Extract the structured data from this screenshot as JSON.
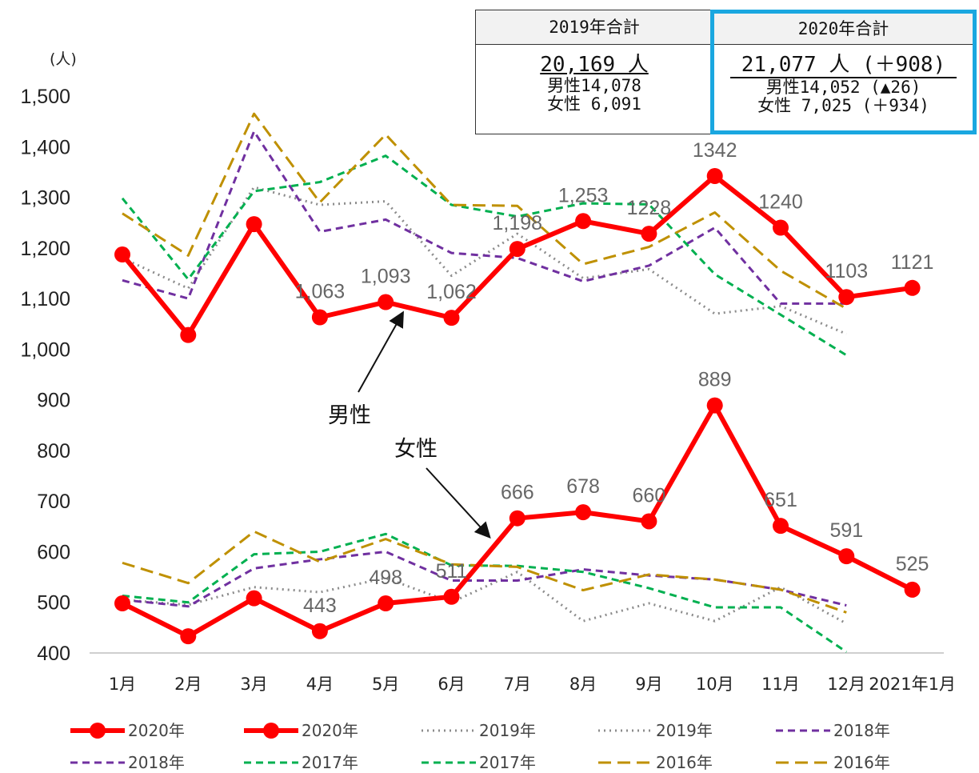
{
  "summary": {
    "y2019": {
      "header": "2019年合計",
      "total": "20,169 人",
      "male": "男性14,078",
      "female": "女性 6,091"
    },
    "y2020": {
      "header": "2020年合計",
      "total": "21,077 人 (＋908)",
      "male": "男性14,052 (▲26)",
      "female": "女性 7,025 (＋934)"
    }
  },
  "annotations": {
    "unit": "(人)",
    "male": "男性",
    "female": "女性"
  },
  "colors": {
    "y2020": "#ff0000",
    "y2019": "#8c8c8c",
    "y2018": "#7030a0",
    "y2017": "#00b050",
    "y2016": "#bf9000"
  },
  "chart_data": {
    "type": "line",
    "categories": [
      "1月",
      "2月",
      "3月",
      "4月",
      "5月",
      "6月",
      "7月",
      "8月",
      "9月",
      "10月",
      "11月",
      "12月",
      "2021年1月"
    ],
    "ylim": [
      400,
      1500
    ],
    "yticks": [
      "400",
      "500",
      "600",
      "700",
      "800",
      "900",
      "1,000",
      "1,100",
      "1,200",
      "1,300",
      "1,400",
      "1,500"
    ],
    "series": [
      {
        "name": "2020年",
        "group": "男性",
        "style": "y2020",
        "values": [
          1187,
          1028,
          1247,
          1063,
          1093,
          1062,
          1198,
          1253,
          1228,
          1342,
          1240,
          1103,
          1121
        ],
        "labels": [
          "",
          "",
          "",
          "1,063",
          "1,093",
          "1,062",
          "1,198",
          "1,253",
          "1228",
          "1342",
          "1240",
          "1103",
          "1121"
        ]
      },
      {
        "name": "2020年",
        "group": "女性",
        "style": "y2020",
        "values": [
          498,
          433,
          508,
          443,
          498,
          511,
          666,
          678,
          660,
          889,
          651,
          591,
          525
        ],
        "labels": [
          "",
          "",
          "",
          "443",
          "498",
          "511",
          "666",
          "678",
          "660",
          "889",
          "651",
          "591",
          "525"
        ]
      },
      {
        "name": "2019年",
        "group": "男性",
        "style": "y2019",
        "values": [
          1180,
          1120,
          1320,
          1285,
          1292,
          1145,
          1228,
          1140,
          1158,
          1070,
          1085,
          1030,
          null
        ]
      },
      {
        "name": "2019年",
        "group": "女性",
        "style": "y2019",
        "values": [
          505,
          495,
          530,
          520,
          548,
          500,
          560,
          463,
          498,
          463,
          530,
          458,
          null
        ]
      },
      {
        "name": "2018年",
        "group": "男性",
        "style": "y2018",
        "values": [
          1136,
          1100,
          1430,
          1232,
          1256,
          1190,
          1180,
          1134,
          1165,
          1240,
          1090,
          1090,
          null
        ]
      },
      {
        "name": "2018年",
        "group": "女性",
        "style": "y2018",
        "values": [
          505,
          492,
          567,
          585,
          600,
          543,
          543,
          565,
          553,
          545,
          525,
          494,
          null
        ]
      },
      {
        "name": "2017年",
        "group": "男性",
        "style": "y2017",
        "values": [
          1298,
          1138,
          1312,
          1330,
          1382,
          1285,
          1262,
          1288,
          1286,
          1148,
          1068,
          988,
          null
        ]
      },
      {
        "name": "2017年",
        "group": "女性",
        "style": "y2017",
        "values": [
          513,
          500,
          595,
          600,
          635,
          573,
          572,
          560,
          528,
          490,
          490,
          402,
          null
        ]
      },
      {
        "name": "2016年",
        "group": "男性",
        "style": "y2016",
        "values": [
          1268,
          1185,
          1465,
          1290,
          1424,
          1285,
          1283,
          1168,
          1202,
          1270,
          1155,
          1080,
          null
        ]
      },
      {
        "name": "2016年",
        "group": "女性",
        "style": "y2016",
        "values": [
          578,
          538,
          640,
          580,
          625,
          575,
          570,
          524,
          555,
          545,
          525,
          480,
          null
        ]
      }
    ]
  }
}
